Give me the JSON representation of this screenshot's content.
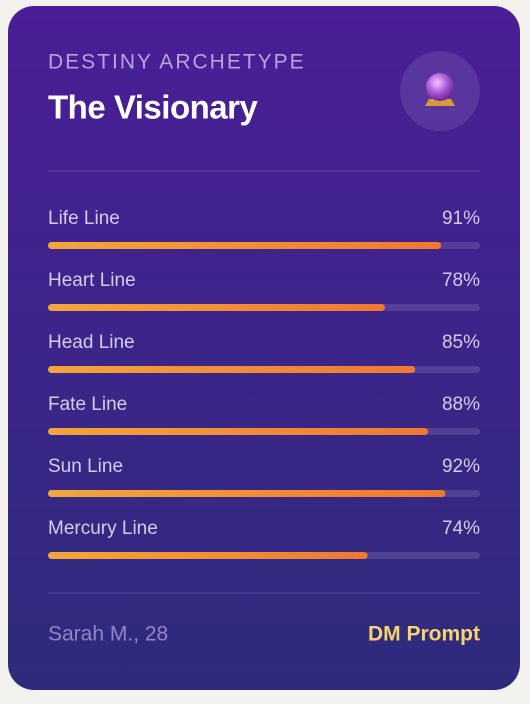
{
  "header": {
    "label": "DESTINY ARCHETYPE",
    "title": "The Visionary"
  },
  "lines": [
    {
      "name": "Life Line",
      "value": 91,
      "value_label": "91%"
    },
    {
      "name": "Heart Line",
      "value": 78,
      "value_label": "78%"
    },
    {
      "name": "Head Line",
      "value": 85,
      "value_label": "85%"
    },
    {
      "name": "Fate Line",
      "value": 88,
      "value_label": "88%"
    },
    {
      "name": "Sun Line",
      "value": 92,
      "value_label": "92%"
    },
    {
      "name": "Mercury Line",
      "value": 74,
      "value_label": "74%"
    }
  ],
  "footer": {
    "user": "Sarah M., 28",
    "action": "DM Prompt"
  }
}
